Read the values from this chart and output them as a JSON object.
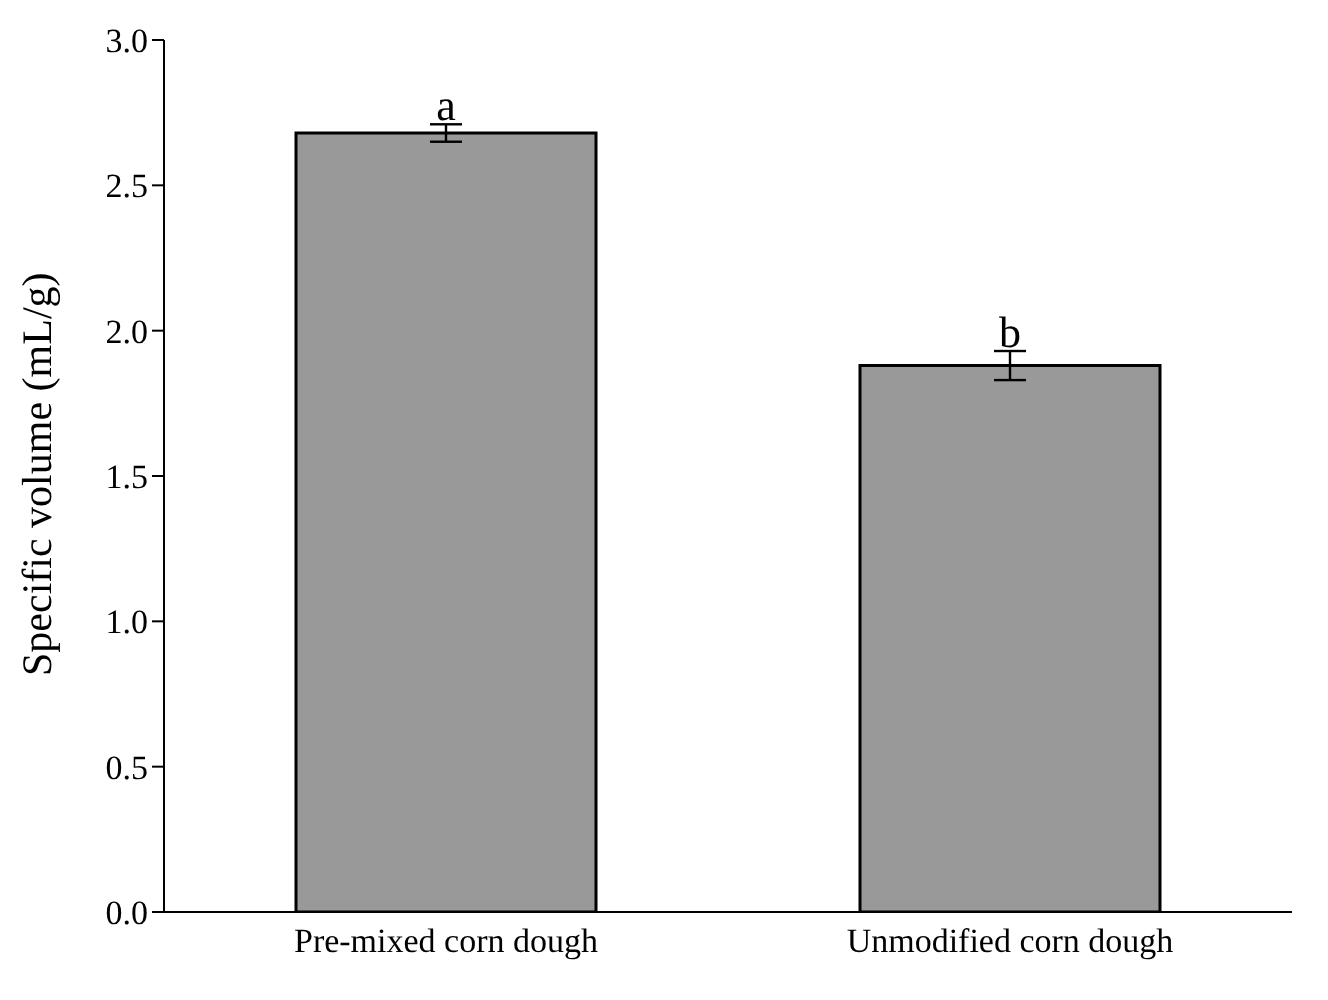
{
  "chart_data": {
    "type": "bar",
    "ylabel": "Specific volume (mL/g)",
    "categories": [
      "Pre-mixed corn dough",
      "Unmodified corn dough"
    ],
    "values": [
      2.68,
      1.88
    ],
    "errors": [
      0.03,
      0.05
    ],
    "color": "#999999",
    "ylim": [
      0,
      3.0
    ],
    "yticks": [
      {
        "value": 0,
        "label": "0.0"
      },
      {
        "value": 0.5,
        "label": "0.5"
      },
      {
        "value": 1,
        "label": "1.0"
      },
      {
        "value": 1.5,
        "label": "1.5"
      },
      {
        "value": 2,
        "label": "2.0"
      },
      {
        "value": 2.5,
        "label": "2.5"
      },
      {
        "value": 3,
        "label": "3.0"
      }
    ],
    "annotations": [
      {
        "text": "a",
        "x": "Pre-mixed corn dough",
        "y": 2.71
      },
      {
        "text": "b",
        "x": "Unmodified corn dough",
        "y": 1.93
      }
    ],
    "grid": false,
    "legend": false
  }
}
